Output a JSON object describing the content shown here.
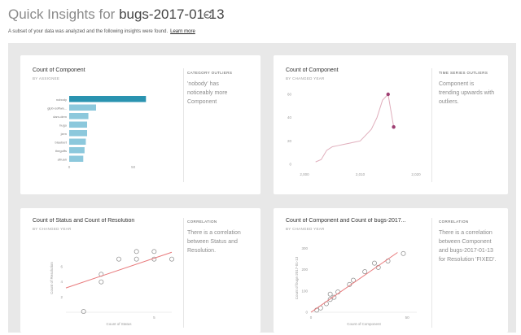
{
  "header": {
    "title_prefix": "Quick Insights for",
    "dataset": "bugs-2017-01-13",
    "subtitle": "A subset of your data was analyzed and the following insights were found.",
    "learn_more": "Learn more"
  },
  "colors": {
    "bar_highlight": "#2a93b0",
    "bar": "#8cc8dc",
    "line": "#e0aebc",
    "outlier": "#9e3e72",
    "trend": "#e8787a",
    "point": "#8a8a8a",
    "canvas": "#e8e8e8"
  },
  "cards": [
    {
      "title": "Count of Component",
      "subtitle": "BY ASSIGNEE",
      "insight_type": "CATEGORY OUTLIERS",
      "insight_text": "'nobody' has noticeably more Component"
    },
    {
      "title": "Count of Component",
      "subtitle": "BY CHANGED YEAR",
      "insight_type": "TIME SERIES OUTLIERS",
      "insight_text": "Component is trending upwards with outliers."
    },
    {
      "title": "Count of Status and Count of Resolution",
      "subtitle": "BY CHANGED YEAR",
      "insight_type": "CORRELATION",
      "insight_text": "There is a correlation between Status and Resolution."
    },
    {
      "title": "Count of Component and Count of bugs-2017...",
      "subtitle": "BY CHANGED YEAR",
      "insight_type": "CORRELATION",
      "insight_text": "There is a correlation between Component and bugs-2017-01-13 for Resolution 'FIXED'."
    }
  ],
  "chart_data": [
    {
      "type": "bar",
      "orientation": "horizontal",
      "categories": [
        "nobody",
        "glpb-softwa...",
        "dam-dem",
        "hugo",
        "jzen",
        "blaubert",
        "thegoffs",
        "afruan"
      ],
      "values": [
        60,
        21,
        15,
        14,
        14,
        13,
        12,
        11
      ],
      "xticks": [
        "0",
        "50"
      ],
      "xlim": [
        0,
        70
      ]
    },
    {
      "type": "line",
      "x": [
        2002,
        2003,
        2004,
        2005,
        2006,
        2007,
        2008,
        2009,
        2010,
        2011,
        2012,
        2013,
        2014,
        2015,
        2016
      ],
      "values": [
        2,
        4,
        12,
        15,
        16,
        17,
        18,
        19,
        20,
        25,
        30,
        40,
        55,
        60,
        32
      ],
      "outliers": [
        {
          "x": 2015,
          "y": 60
        },
        {
          "x": 2016,
          "y": 32
        }
      ],
      "yticks": [
        "0",
        "20",
        "40",
        "60"
      ],
      "xticks": [
        "2,000",
        "2,010",
        "2,020"
      ],
      "xlim": [
        2000,
        2020
      ],
      "ylim": [
        0,
        60
      ]
    },
    {
      "type": "scatter",
      "xlabel": "Count of Status",
      "ylabel": "Count of Resolution",
      "points": [
        [
          1,
          0.1
        ],
        [
          2,
          4
        ],
        [
          2,
          5
        ],
        [
          3,
          7
        ],
        [
          4,
          8
        ],
        [
          4,
          7
        ],
        [
          5,
          8
        ],
        [
          5,
          7
        ],
        [
          6,
          7
        ]
      ],
      "trend": [
        [
          0,
          3.2
        ],
        [
          6,
          7.9
        ]
      ],
      "yticks": [
        "6",
        "4",
        "2"
      ],
      "xticks": [
        "5"
      ],
      "xlim": [
        0,
        6
      ],
      "ylim": [
        0,
        9
      ]
    },
    {
      "type": "scatter",
      "xlabel": "Count of Component",
      "ylabel": "Count of bugs-2017-01-13",
      "points": [
        [
          3,
          10
        ],
        [
          5,
          20
        ],
        [
          8,
          40
        ],
        [
          10,
          60
        ],
        [
          10,
          85
        ],
        [
          12,
          70
        ],
        [
          14,
          95
        ],
        [
          20,
          130
        ],
        [
          22,
          150
        ],
        [
          28,
          190
        ],
        [
          33,
          230
        ],
        [
          35,
          210
        ],
        [
          40,
          240
        ],
        [
          48,
          275
        ]
      ],
      "trend": [
        [
          0,
          0
        ],
        [
          45,
          280
        ]
      ],
      "yticks": [
        "300",
        "200",
        "100",
        "0"
      ],
      "xticks": [
        "0",
        "50"
      ],
      "xlim": [
        0,
        55
      ],
      "ylim": [
        0,
        320
      ]
    }
  ]
}
